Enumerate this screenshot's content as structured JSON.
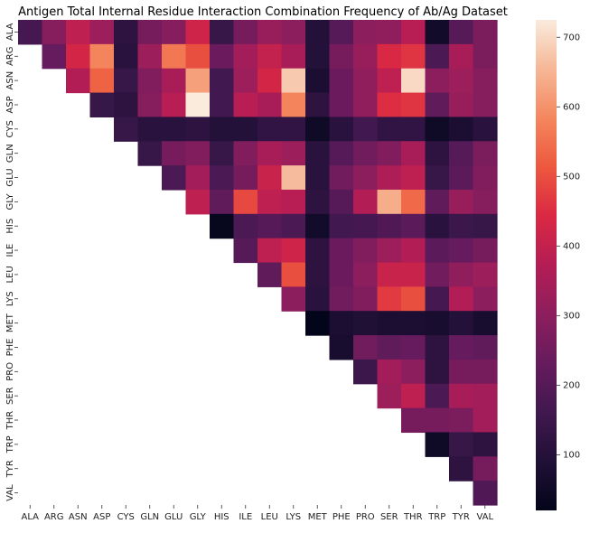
{
  "chart_data": {
    "type": "heatmap",
    "title": "Antigen Total Internal Residue Interaction Combination Frequency of Ab/Ag Dataset",
    "xlabel": "",
    "ylabel": "",
    "categories": [
      "ALA",
      "ARG",
      "ASN",
      "ASP",
      "CYS",
      "GLN",
      "GLU",
      "GLY",
      "HIS",
      "ILE",
      "LEU",
      "LYS",
      "MET",
      "PHE",
      "PRO",
      "SER",
      "THR",
      "TRP",
      "TYR",
      "VAL"
    ],
    "layout": "upper-triangle",
    "colormap": "rocket",
    "vmin": 20,
    "vmax": 725,
    "colorbar_ticks": [
      100,
      200,
      300,
      400,
      500,
      600,
      700
    ],
    "values": [
      [
        170,
        290,
        390,
        330,
        120,
        260,
        290,
        420,
        140,
        260,
        320,
        300,
        100,
        200,
        300,
        310,
        380,
        60,
        200,
        270
      ],
      [
        null,
        230,
        430,
        580,
        110,
        330,
        560,
        500,
        240,
        340,
        400,
        350,
        100,
        260,
        320,
        440,
        460,
        180,
        350,
        270
      ],
      [
        null,
        null,
        370,
        530,
        140,
        280,
        350,
        620,
        160,
        330,
        430,
        680,
        80,
        240,
        310,
        390,
        700,
        300,
        330,
        290
      ],
      [
        null,
        null,
        null,
        140,
        120,
        290,
        380,
        725,
        160,
        380,
        350,
        580,
        120,
        240,
        310,
        450,
        460,
        220,
        320,
        290
      ],
      [
        null,
        null,
        null,
        null,
        140,
        110,
        110,
        120,
        100,
        100,
        130,
        130,
        50,
        110,
        160,
        130,
        130,
        50,
        80,
        110
      ],
      [
        null,
        null,
        null,
        null,
        null,
        140,
        260,
        280,
        140,
        280,
        350,
        330,
        110,
        200,
        250,
        280,
        350,
        120,
        200,
        270
      ],
      [
        null,
        null,
        null,
        null,
        null,
        null,
        180,
        340,
        180,
        260,
        410,
        660,
        110,
        250,
        300,
        360,
        390,
        140,
        210,
        280
      ],
      [
        null,
        null,
        null,
        null,
        null,
        null,
        null,
        390,
        220,
        490,
        390,
        380,
        120,
        200,
        370,
        640,
        540,
        220,
        320,
        290
      ],
      [
        null,
        null,
        null,
        null,
        null,
        null,
        null,
        null,
        30,
        180,
        200,
        180,
        60,
        160,
        170,
        190,
        210,
        110,
        150,
        140
      ],
      [
        null,
        null,
        null,
        null,
        null,
        null,
        null,
        null,
        null,
        200,
        390,
        420,
        120,
        240,
        280,
        330,
        370,
        210,
        230,
        260
      ],
      [
        null,
        null,
        null,
        null,
        null,
        null,
        null,
        null,
        null,
        null,
        220,
        500,
        120,
        240,
        300,
        410,
        410,
        250,
        310,
        330
      ],
      [
        null,
        null,
        null,
        null,
        null,
        null,
        null,
        null,
        null,
        null,
        null,
        300,
        110,
        250,
        280,
        470,
        500,
        170,
        370,
        300
      ],
      [
        null,
        null,
        null,
        null,
        null,
        null,
        null,
        null,
        null,
        null,
        null,
        null,
        20,
        80,
        90,
        80,
        80,
        70,
        100,
        70
      ],
      [
        null,
        null,
        null,
        null,
        null,
        null,
        null,
        null,
        null,
        null,
        null,
        null,
        null,
        70,
        250,
        220,
        230,
        120,
        230,
        220
      ],
      [
        null,
        null,
        null,
        null,
        null,
        null,
        null,
        null,
        null,
        null,
        null,
        null,
        null,
        null,
        150,
        340,
        300,
        120,
        260,
        260
      ],
      [
        null,
        null,
        null,
        null,
        null,
        null,
        null,
        null,
        null,
        null,
        null,
        null,
        null,
        null,
        null,
        330,
        390,
        180,
        350,
        340
      ],
      [
        null,
        null,
        null,
        null,
        null,
        null,
        null,
        null,
        null,
        null,
        null,
        null,
        null,
        null,
        null,
        null,
        260,
        260,
        270,
        340
      ],
      [
        null,
        null,
        null,
        null,
        null,
        null,
        null,
        null,
        null,
        null,
        null,
        null,
        null,
        null,
        null,
        null,
        null,
        50,
        140,
        120
      ],
      [
        null,
        null,
        null,
        null,
        null,
        null,
        null,
        null,
        null,
        null,
        null,
        null,
        null,
        null,
        null,
        null,
        null,
        null,
        120,
        260
      ],
      [
        null,
        null,
        null,
        null,
        null,
        null,
        null,
        null,
        null,
        null,
        null,
        null,
        null,
        null,
        null,
        null,
        null,
        null,
        null,
        190
      ]
    ]
  }
}
